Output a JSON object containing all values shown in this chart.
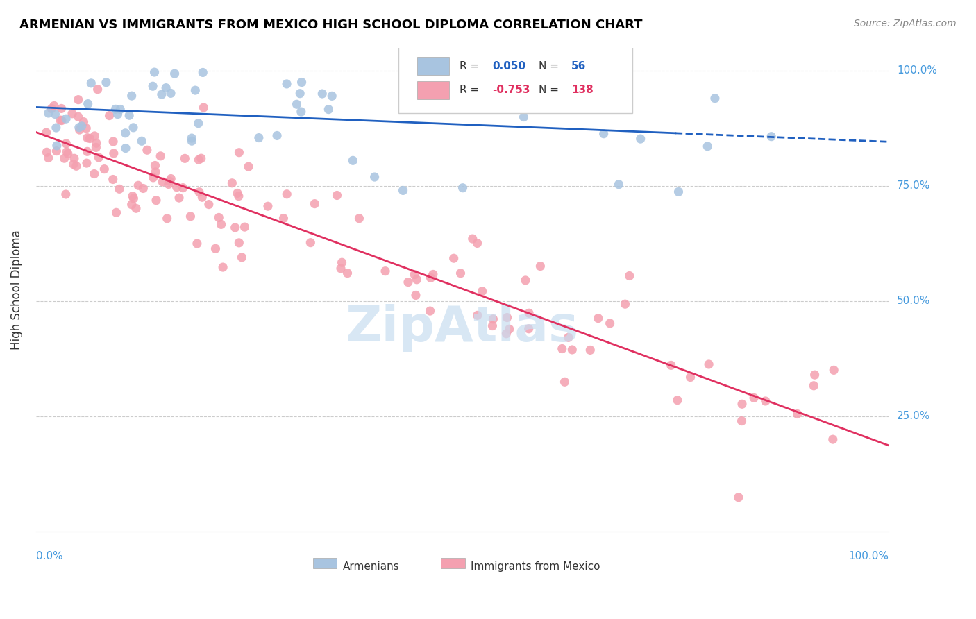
{
  "title": "ARMENIAN VS IMMIGRANTS FROM MEXICO HIGH SCHOOL DIPLOMA CORRELATION CHART",
  "source": "Source: ZipAtlas.com",
  "ylabel": "High School Diploma",
  "legend_blue_r": "0.050",
  "legend_blue_n": "56",
  "legend_pink_r": "-0.753",
  "legend_pink_n": "138",
  "blue_color": "#a8c4e0",
  "pink_color": "#f4a0b0",
  "blue_line_color": "#2060c0",
  "pink_line_color": "#e03060",
  "bg_color": "#ffffff",
  "grid_color": "#cccccc",
  "title_color": "#000000",
  "source_color": "#888888",
  "axis_label_color": "#4499dd",
  "watermark_color": "#c8ddf0"
}
